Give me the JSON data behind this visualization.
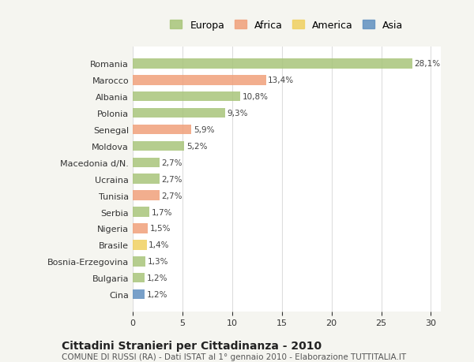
{
  "categories": [
    "Romania",
    "Marocco",
    "Albania",
    "Polonia",
    "Senegal",
    "Moldova",
    "Macedonia d/N.",
    "Ucraina",
    "Tunisia",
    "Serbia",
    "Nigeria",
    "Brasile",
    "Bosnia-Erzegovina",
    "Bulgaria",
    "Cina"
  ],
  "values": [
    28.1,
    13.4,
    10.8,
    9.3,
    5.9,
    5.2,
    2.7,
    2.7,
    2.7,
    1.7,
    1.5,
    1.4,
    1.3,
    1.2,
    1.2
  ],
  "labels": [
    "28,1%",
    "13,4%",
    "10,8%",
    "9,3%",
    "5,9%",
    "5,2%",
    "2,7%",
    "2,7%",
    "2,7%",
    "1,7%",
    "1,5%",
    "1,4%",
    "1,3%",
    "1,2%",
    "1,2%"
  ],
  "continent": [
    "Europa",
    "Africa",
    "Europa",
    "Europa",
    "Africa",
    "Europa",
    "Europa",
    "Europa",
    "Africa",
    "Europa",
    "Africa",
    "America",
    "Europa",
    "Europa",
    "Asia"
  ],
  "colors": {
    "Europa": "#a8c57a",
    "Africa": "#f0a07a",
    "America": "#f0d060",
    "Asia": "#6090c0"
  },
  "legend_order": [
    "Europa",
    "Africa",
    "America",
    "Asia"
  ],
  "title": "Cittadini Stranieri per Cittadinanza - 2010",
  "subtitle": "COMUNE DI RUSSI (RA) - Dati ISTAT al 1° gennaio 2010 - Elaborazione TUTTITALIA.IT",
  "xlim": [
    0,
    31
  ],
  "xticks": [
    0,
    5,
    10,
    15,
    20,
    25,
    30
  ],
  "background_color": "#f5f5f0",
  "plot_bg_color": "#ffffff"
}
